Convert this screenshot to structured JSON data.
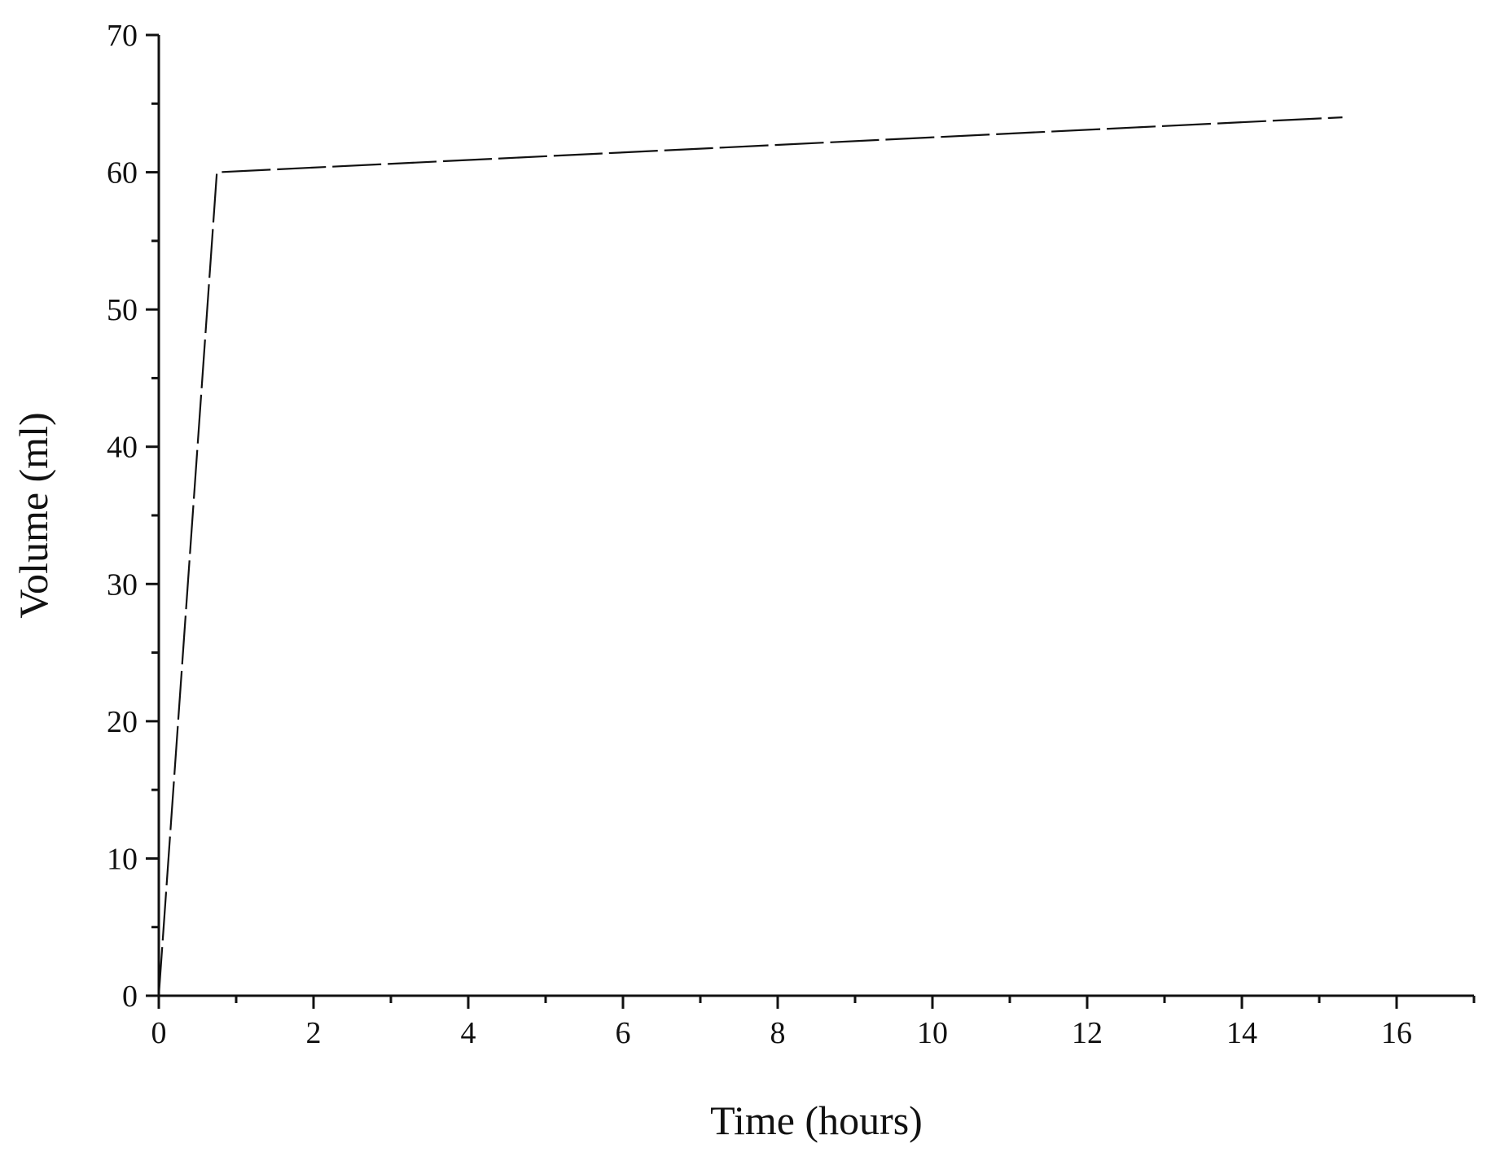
{
  "chart_data": {
    "type": "line",
    "title": "",
    "xlabel": "Time (hours)",
    "ylabel": "Volume (ml)",
    "xlim": [
      0,
      17
    ],
    "ylim": [
      0,
      70
    ],
    "x_ticks": [
      0,
      2,
      4,
      6,
      8,
      10,
      12,
      14,
      16
    ],
    "x_tick_labels": [
      "0",
      "2",
      "4",
      "6",
      "8",
      "10",
      "12",
      "14",
      "16"
    ],
    "y_ticks": [
      0,
      10,
      20,
      30,
      40,
      50,
      60,
      70
    ],
    "y_tick_labels": [
      "0",
      "10",
      "20",
      "30",
      "40",
      "50",
      "60",
      "70"
    ],
    "grid": false,
    "series": [
      {
        "x": [
          0,
          0.75,
          15.3
        ],
        "y": [
          0,
          60,
          64
        ],
        "line_style": "dashed",
        "color": "#111111"
      }
    ]
  }
}
